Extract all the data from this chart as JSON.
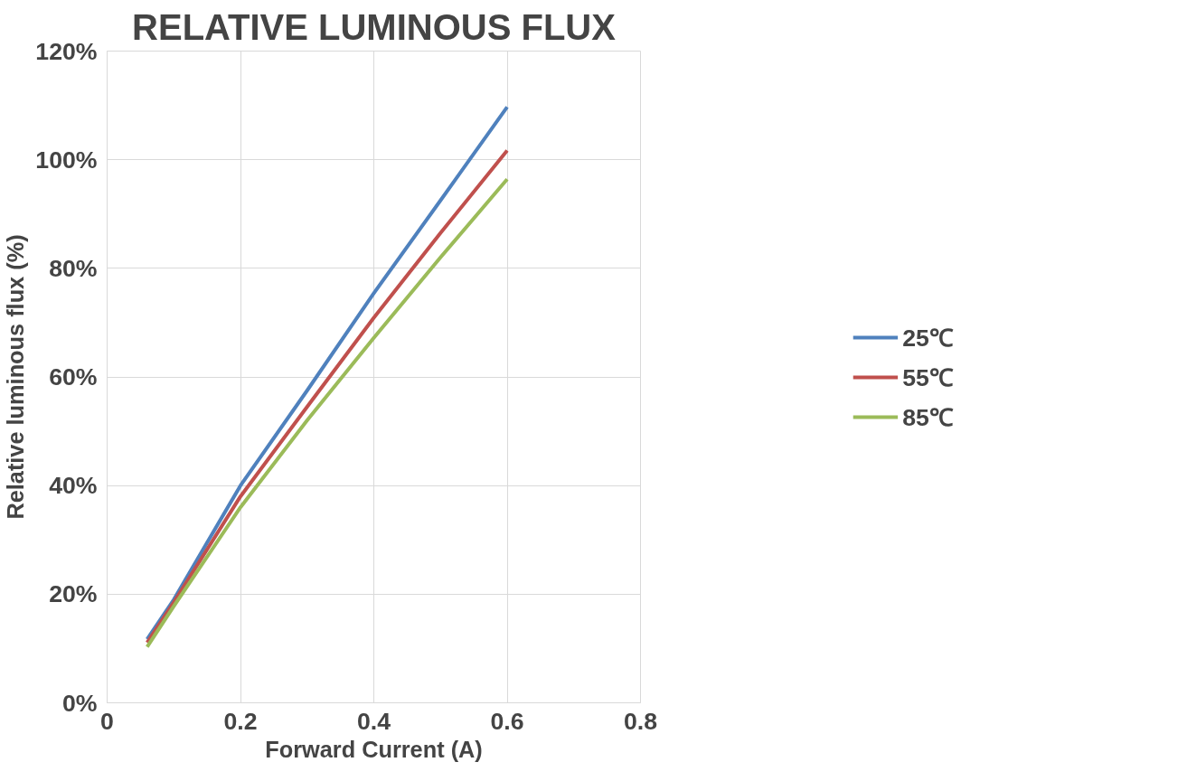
{
  "chart_data": {
    "type": "line",
    "title": "RELATIVE LUMINOUS FLUX",
    "xlabel": "Forward Current (A)",
    "ylabel": "Relative luminous flux (%)",
    "x": [
      0.06,
      0.1,
      0.2,
      0.3,
      0.4,
      0.5,
      0.6
    ],
    "series": [
      {
        "name": "25℃",
        "color": "#4f81bd",
        "values": [
          11.7,
          19,
          40,
          57.5,
          75.4,
          92.5,
          109.7
        ]
      },
      {
        "name": "55℃",
        "color": "#c0504d",
        "values": [
          11.1,
          18.5,
          38,
          54.5,
          70.9,
          86.5,
          101.7
        ]
      },
      {
        "name": "85℃",
        "color": "#9bbb59",
        "values": [
          10.3,
          17.8,
          36,
          52,
          67.2,
          82,
          96.4
        ]
      }
    ],
    "xlim": [
      0,
      0.8
    ],
    "xticks": [
      0,
      0.2,
      0.4,
      0.6,
      0.8
    ],
    "ylim": [
      0,
      120
    ],
    "yticks": [
      {
        "value": 0,
        "label": "0%"
      },
      {
        "value": 20,
        "label": "20%"
      },
      {
        "value": 40,
        "label": "40%"
      },
      {
        "value": 60,
        "label": "60%"
      },
      {
        "value": 80,
        "label": "80%"
      },
      {
        "value": 100,
        "label": "100%"
      },
      {
        "value": 120,
        "label": "120%"
      }
    ],
    "grid": true,
    "legend": "right",
    "marker": "none",
    "line_style": "solid"
  }
}
